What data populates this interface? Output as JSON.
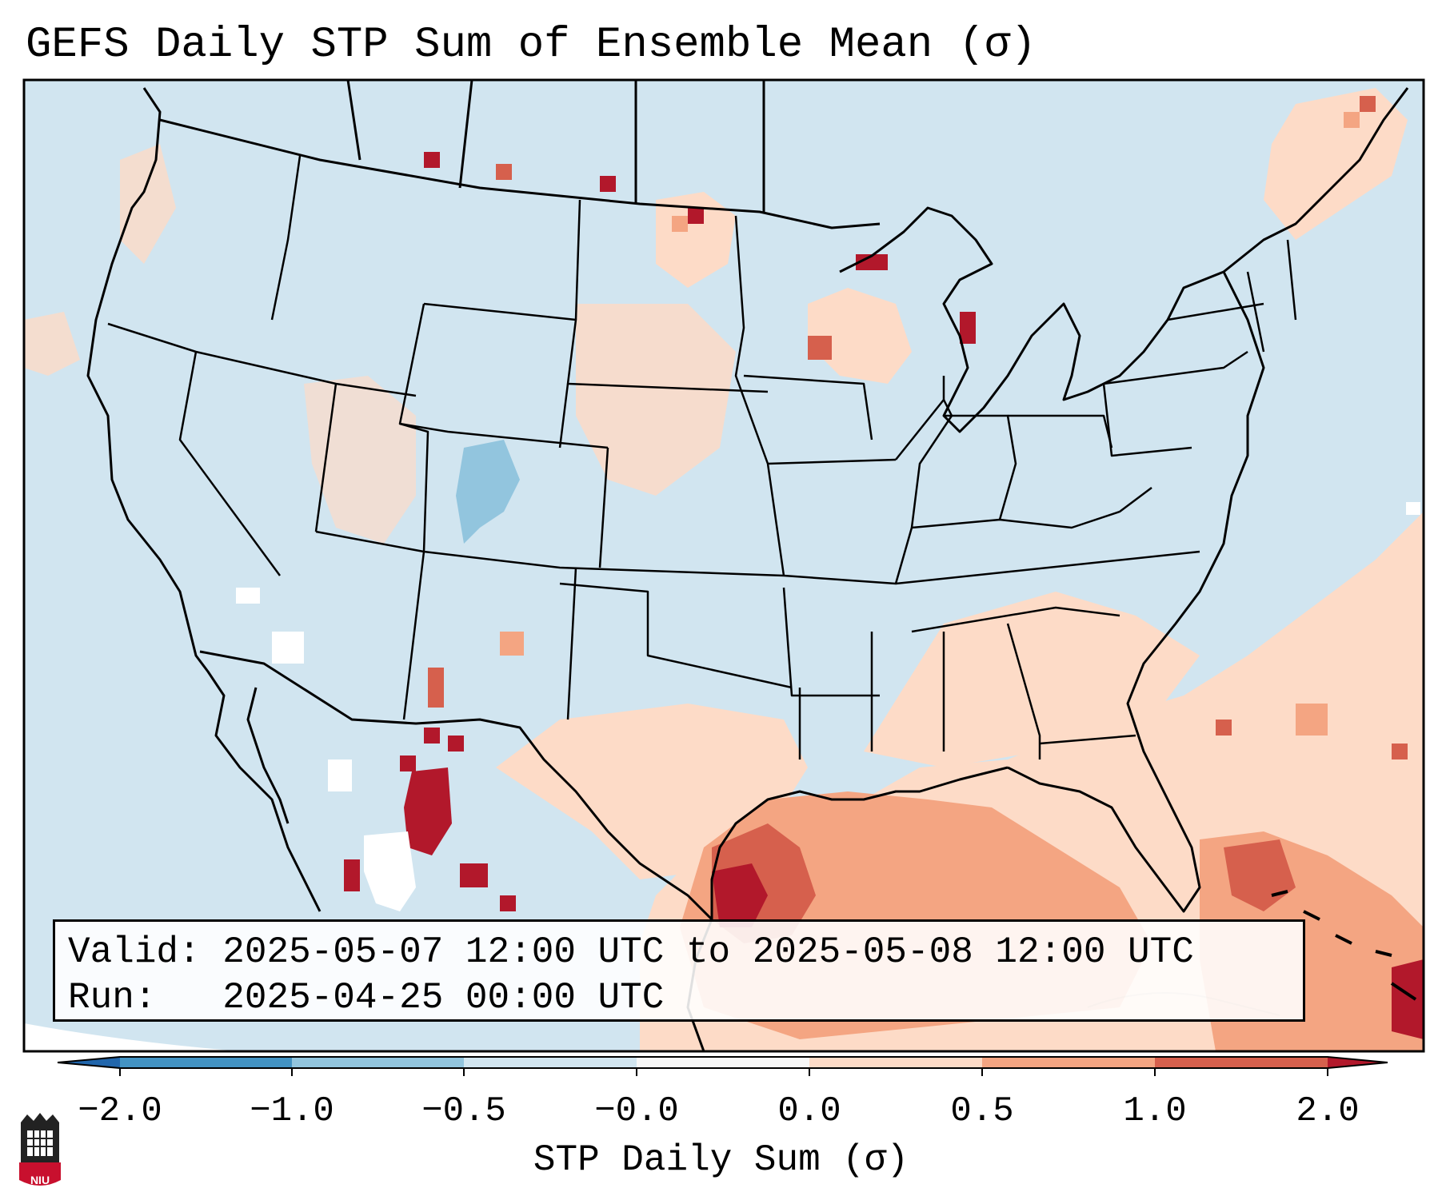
{
  "title": "GEFS Daily STP Sum of Ensemble Mean (σ)",
  "info": {
    "valid_label": "Valid:",
    "valid_value": "2025-05-07 12:00 UTC to 2025-05-08 12:00 UTC",
    "run_label": "Run:",
    "run_value": "2025-04-25 00:00 UTC"
  },
  "colorbar": {
    "label": "STP Daily Sum (σ)",
    "ticks": [
      "−2.0",
      "−1.0",
      "−0.5",
      "−0.0",
      "0.0",
      "0.5",
      "1.0",
      "2.0"
    ],
    "colors": [
      "#4393c3",
      "#92c5de",
      "#d1e5f0",
      "#f7f7f7",
      "#fddbc7",
      "#f4a582",
      "#d6604d",
      "#b2182b"
    ],
    "under_color": "#2166ac",
    "over_color": "#b2182b"
  },
  "map": {
    "background_color": "#d1e5f0",
    "region": "Contiguous United States, southern Canada, northern Mexico, Gulf of Mexico",
    "projection": "Lambert Conformal"
  },
  "logo": {
    "text": "NIU",
    "color": "#c8102e"
  }
}
